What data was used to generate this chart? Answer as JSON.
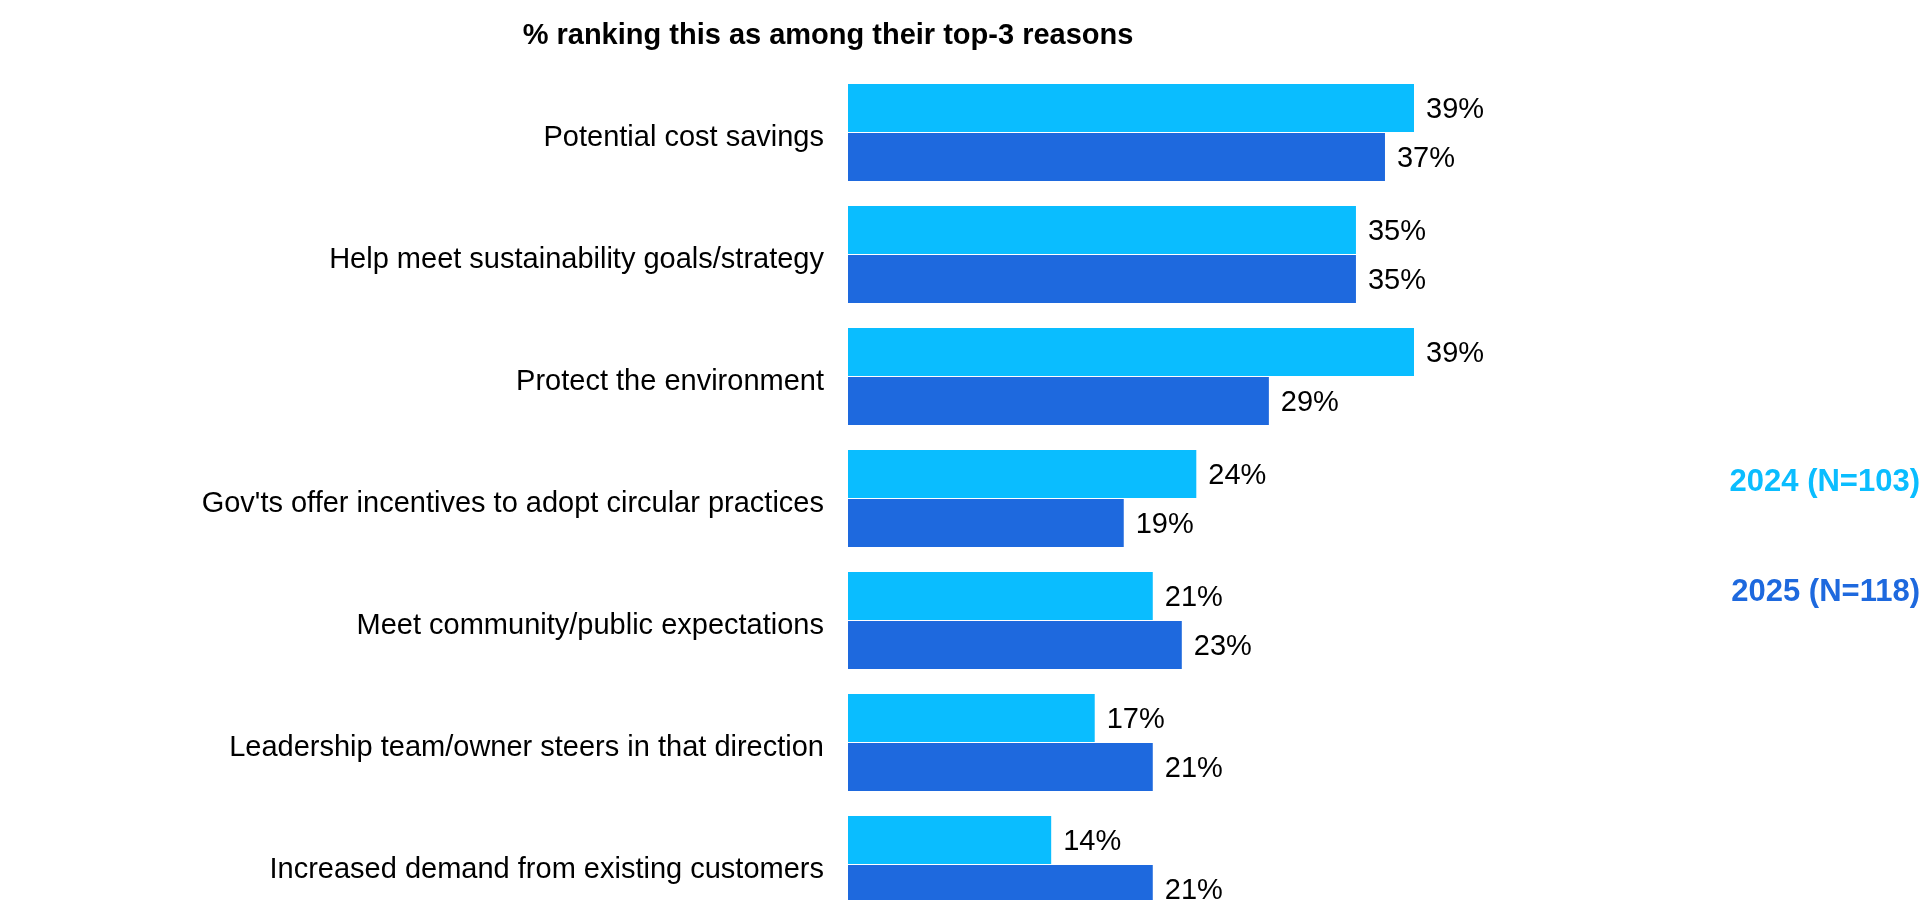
{
  "chart_data": {
    "type": "bar",
    "orientation": "horizontal",
    "title": "% ranking this as among their top-3 reasons",
    "categories": [
      "Potential cost savings",
      "Help meet sustainability goals/strategy",
      "Protect the environment",
      "Gov'ts offer incentives to adopt circular practices",
      "Meet community/public expectations",
      "Leadership team/owner steers in that direction",
      "Increased demand from existing customers"
    ],
    "series": [
      {
        "name": "2024 (N=103)",
        "color": "#0abdff",
        "values": [
          39,
          35,
          39,
          24,
          21,
          17,
          14
        ],
        "value_labels": [
          "39%",
          "35%",
          "39%",
          "24%",
          "21%",
          "17%",
          "14%"
        ]
      },
      {
        "name": "2025 (N=118)",
        "color": "#1e69de",
        "values": [
          37,
          35,
          29,
          19,
          23,
          21,
          21
        ],
        "value_labels": [
          "37%",
          "35%",
          "29%",
          "19%",
          "23%",
          "21%",
          "21%"
        ]
      }
    ],
    "data_labels": true,
    "legend": "right"
  }
}
